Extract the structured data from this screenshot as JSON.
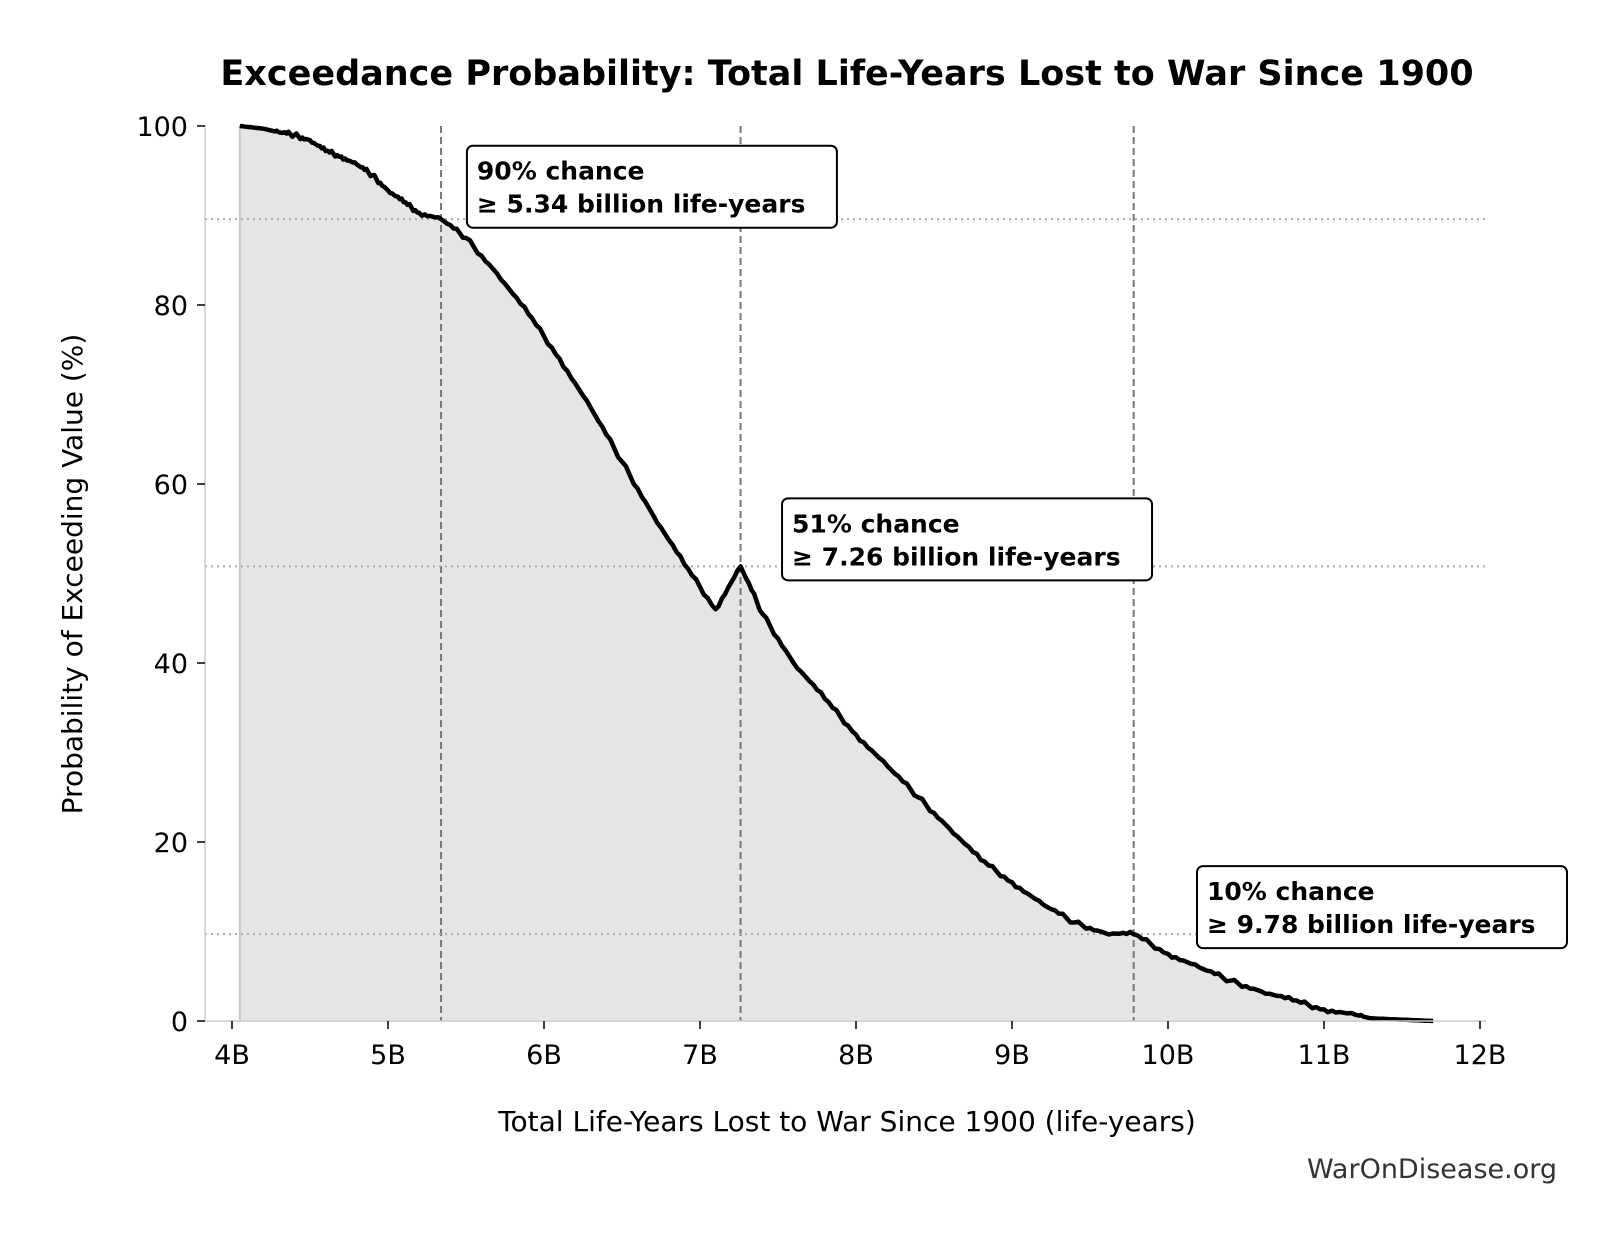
{
  "chart_data": {
    "type": "area",
    "title": "Exceedance Probability: Total Life-Years Lost to War Since 1900",
    "xlabel": "Total Life-Years Lost to War Since 1900 (life-years)",
    "ylabel": "Probability of Exceeding Value (%)",
    "xlim": [
      3.85,
      12.05
    ],
    "ylim": [
      0,
      100
    ],
    "x_ticks": [
      4,
      5,
      6,
      7,
      8,
      9,
      10,
      11,
      12
    ],
    "x_tick_labels": [
      "4B",
      "5B",
      "6B",
      "7B",
      "8B",
      "9B",
      "10B",
      "11B",
      "12B"
    ],
    "y_ticks": [
      0,
      20,
      40,
      60,
      80,
      100
    ],
    "y_tick_labels": [
      "0",
      "20",
      "40",
      "60",
      "80",
      "100"
    ],
    "x_unit": "billion life-years",
    "grid": false,
    "series": [
      {
        "x": [
          4.05,
          4.2,
          4.3,
          4.4,
          4.5,
          4.6,
          4.7,
          4.8,
          4.9,
          5.0,
          5.1,
          5.2,
          5.34,
          5.5,
          5.7,
          5.9,
          6.1,
          6.3,
          6.5,
          6.7,
          6.9,
          7.1,
          7.26,
          7.4,
          7.6,
          7.8,
          8.0,
          8.2,
          8.4,
          8.6,
          8.8,
          9.0,
          9.2,
          9.4,
          9.6,
          9.78,
          10.0,
          10.2,
          10.4,
          10.6,
          10.8,
          11.0,
          11.2,
          11.3,
          11.5,
          11.7
        ],
        "y": [
          100,
          99.7,
          99.3,
          99.0,
          98.4,
          97.2,
          96.6,
          95.7,
          94.5,
          92.8,
          91.5,
          90.3,
          89.6,
          87.5,
          83.5,
          79.0,
          74.0,
          68.5,
          62.5,
          56.5,
          51.0,
          46.0,
          50.8,
          45.5,
          40.0,
          36.0,
          32.0,
          28.5,
          25.0,
          21.5,
          18.0,
          15.5,
          13.0,
          11.0,
          9.8,
          9.7,
          7.5,
          6.0,
          4.5,
          3.3,
          2.3,
          1.3,
          0.7,
          0.3,
          0.15,
          0.0
        ]
      }
    ],
    "reference_lines": [
      {
        "x": 5.34,
        "y": 89.6
      },
      {
        "x": 7.26,
        "y": 50.8
      },
      {
        "x": 9.78,
        "y": 9.7
      }
    ],
    "annotations": [
      {
        "line1": "90% chance",
        "line2": "≥ 5.34 billion life-years",
        "anchor_x": 5.57,
        "anchor_y": 94.0
      },
      {
        "line1": "51% chance",
        "line2": "≥ 7.26 billion life-years",
        "anchor_x": 7.59,
        "anchor_y": 54.6
      },
      {
        "line1": "10% chance",
        "line2": "≥ 9.78 billion life-years",
        "anchor_x": 10.25,
        "anchor_y": 13.5
      }
    ],
    "source": "WarOnDisease.org"
  }
}
